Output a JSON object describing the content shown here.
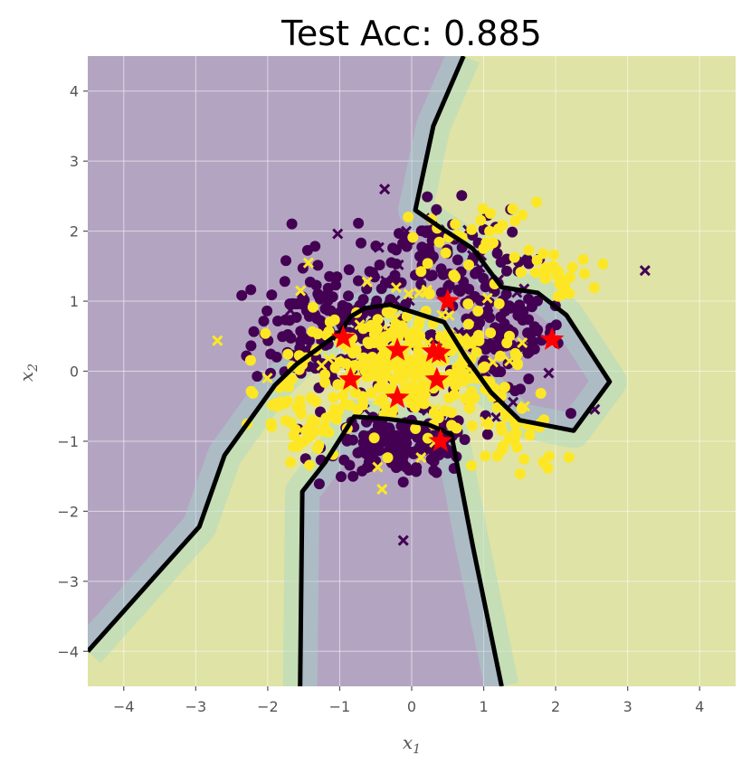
{
  "chart_data": {
    "type": "scatter",
    "title": "Test Acc: 0.885",
    "xlabel": "x",
    "xlabel_sub": "1",
    "ylabel": "x",
    "ylabel_sub": "2",
    "xlim": [
      -4.5,
      4.5
    ],
    "ylim": [
      -4.5,
      4.5
    ],
    "xticks": [
      -4,
      -3,
      -2,
      -1,
      0,
      1,
      2,
      3,
      4
    ],
    "yticks": [
      -4,
      -3,
      -2,
      -1,
      0,
      1,
      2,
      3,
      4
    ],
    "xtick_labels": [
      "−4",
      "−3",
      "−2",
      "−1",
      "0",
      "1",
      "2",
      "3",
      "4"
    ],
    "ytick_labels": [
      "−4",
      "−3",
      "−2",
      "−1",
      "0",
      "1",
      "2",
      "3",
      "4"
    ],
    "grid": true,
    "colors": {
      "class0": "#440154",
      "class1": "#fde725",
      "region0": "#b3a5c1",
      "region1": "#dfe3a6",
      "margin": "#a6d8c8",
      "boundary": "#000000",
      "star": "#ff0000",
      "grid": "#ffffff"
    },
    "decision_boundary": [
      {
        "name": "",
        "points": [
          [
            -4.5,
            -4.0
          ],
          [
            -2.95,
            -2.22
          ],
          [
            -2.6,
            -1.2
          ],
          [
            -1.9,
            -0.2
          ],
          [
            -1.6,
            0.1
          ],
          [
            -1.0,
            0.55
          ],
          [
            -0.85,
            0.78
          ],
          [
            -0.65,
            0.9
          ],
          [
            -0.3,
            0.95
          ],
          [
            0.45,
            0.7
          ],
          [
            0.75,
            0.2
          ],
          [
            1.1,
            -0.3
          ],
          [
            1.5,
            -0.7
          ],
          [
            2.25,
            -0.85
          ],
          [
            2.75,
            -0.15
          ],
          [
            2.15,
            0.8
          ],
          [
            1.75,
            1.12
          ],
          [
            1.25,
            1.2
          ],
          [
            0.85,
            1.75
          ],
          [
            0.4,
            2.05
          ],
          [
            0.05,
            2.3
          ],
          [
            0.3,
            3.5
          ],
          [
            0.72,
            4.5
          ]
        ]
      },
      {
        "name": "",
        "points": [
          [
            -1.55,
            -4.5
          ],
          [
            -1.52,
            -1.72
          ],
          [
            -1.2,
            -1.3
          ],
          [
            -0.8,
            -0.65
          ],
          [
            -0.35,
            -0.68
          ],
          [
            0.2,
            -0.75
          ],
          [
            0.55,
            -0.9
          ],
          [
            0.85,
            -2.5
          ],
          [
            1.25,
            -4.5
          ]
        ]
      }
    ],
    "clusters": [
      {
        "class": 0,
        "marker": "o",
        "cx": -1.1,
        "cy": 0.6,
        "sx": 0.55,
        "sy": 0.45,
        "n": 160
      },
      {
        "class": 0,
        "marker": "o",
        "cx": 0.25,
        "cy": 1.7,
        "sx": 0.55,
        "sy": 0.35,
        "n": 90
      },
      {
        "class": 0,
        "marker": "o",
        "cx": 1.2,
        "cy": 0.55,
        "sx": 0.45,
        "sy": 0.45,
        "n": 120
      },
      {
        "class": 0,
        "marker": "o",
        "cx": -0.15,
        "cy": -1.05,
        "sx": 0.5,
        "sy": 0.22,
        "n": 150
      },
      {
        "class": 0,
        "marker": "x",
        "cx": 0.4,
        "cy": 0.8,
        "sx": 0.9,
        "sy": 0.8,
        "n": 40
      },
      {
        "class": 1,
        "marker": "o",
        "cx": -0.2,
        "cy": 0.05,
        "sx": 0.7,
        "sy": 0.45,
        "n": 280
      },
      {
        "class": 1,
        "marker": "o",
        "cx": -1.5,
        "cy": -0.8,
        "sx": 0.35,
        "sy": 0.35,
        "n": 45
      },
      {
        "class": 1,
        "marker": "o",
        "cx": 1.5,
        "cy": -0.9,
        "sx": 0.3,
        "sy": 0.35,
        "n": 35
      },
      {
        "class": 1,
        "marker": "o",
        "cx": 0.9,
        "cy": 1.9,
        "sx": 0.5,
        "sy": 0.25,
        "n": 35
      },
      {
        "class": 1,
        "marker": "o",
        "cx": 2.0,
        "cy": 1.35,
        "sx": 0.25,
        "sy": 0.15,
        "n": 25
      },
      {
        "class": 1,
        "marker": "x",
        "cx": 0.0,
        "cy": 0.2,
        "sx": 0.9,
        "sy": 0.6,
        "n": 60
      }
    ],
    "stars": [
      {
        "x": 0.5,
        "y": 1.0
      },
      {
        "x": 1.95,
        "y": 0.45
      },
      {
        "x": -0.95,
        "y": 0.48
      },
      {
        "x": -0.2,
        "y": 0.3
      },
      {
        "x": 0.3,
        "y": 0.28
      },
      {
        "x": 0.38,
        "y": 0.26
      },
      {
        "x": -0.85,
        "y": -0.12
      },
      {
        "x": 0.35,
        "y": -0.12
      },
      {
        "x": -0.2,
        "y": -0.38
      },
      {
        "x": 0.4,
        "y": -1.0
      }
    ]
  }
}
